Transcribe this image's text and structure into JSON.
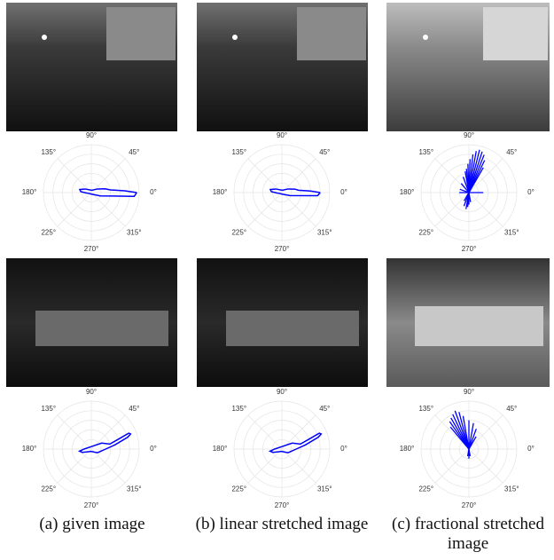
{
  "chart_data": [
    {
      "type": "line",
      "color": "#0000ff",
      "rlim": [
        0,
        1
      ],
      "thetaticks": [
        {
          "value": 90,
          "label": "90°"
        },
        {
          "value": 45,
          "label": "45°"
        },
        {
          "value": 0,
          "label": "0°"
        },
        {
          "value": 315,
          "label": "315°"
        },
        {
          "value": 270,
          "label": "270°"
        },
        {
          "value": 225,
          "label": "225°"
        },
        {
          "value": 180,
          "label": "180°"
        },
        {
          "value": 135,
          "label": "135°"
        }
      ],
      "theta": [
        0,
        3,
        8,
        15,
        30,
        80,
        150,
        165,
        175,
        185,
        200,
        260,
        340,
        355,
        0
      ],
      "r": [
        0.95,
        0.7,
        0.4,
        0.3,
        0.15,
        0.05,
        0.15,
        0.25,
        0.22,
        0.1,
        0.05,
        0.03,
        0.2,
        0.9,
        0.95
      ]
    },
    {
      "type": "line",
      "color": "#0000ff",
      "rlim": [
        0,
        1
      ],
      "thetaticks": [
        {
          "value": 90,
          "label": "90°"
        },
        {
          "value": 45,
          "label": "45°"
        },
        {
          "value": 0,
          "label": "0°"
        },
        {
          "value": 315,
          "label": "315°"
        },
        {
          "value": 270,
          "label": "270°"
        },
        {
          "value": 225,
          "label": "225°"
        },
        {
          "value": 180,
          "label": "180°"
        },
        {
          "value": 135,
          "label": "135°"
        }
      ],
      "theta": [
        0,
        3,
        8,
        15,
        30,
        80,
        150,
        165,
        175,
        185,
        200,
        260,
        340,
        355,
        0
      ],
      "r": [
        0.8,
        0.6,
        0.35,
        0.28,
        0.15,
        0.05,
        0.15,
        0.25,
        0.22,
        0.1,
        0.05,
        0.03,
        0.18,
        0.75,
        0.8
      ]
    },
    {
      "type": "spikes",
      "color": "#0000ff",
      "rlim": [
        0,
        1
      ],
      "thetaticks": [
        {
          "value": 90,
          "label": "90°"
        },
        {
          "value": 45,
          "label": "45°"
        },
        {
          "value": 0,
          "label": "0°"
        },
        {
          "value": 315,
          "label": "315°"
        },
        {
          "value": 270,
          "label": "270°"
        },
        {
          "value": 225,
          "label": "225°"
        },
        {
          "value": 180,
          "label": "180°"
        },
        {
          "value": 135,
          "label": "135°"
        }
      ],
      "theta": [
        0,
        60,
        64,
        68,
        72,
        76,
        80,
        84,
        88,
        92,
        96,
        100,
        110,
        130,
        160,
        180,
        240,
        250,
        260,
        265,
        270,
        280
      ],
      "r": [
        0.3,
        0.6,
        0.75,
        0.85,
        0.9,
        0.92,
        0.88,
        0.8,
        0.7,
        0.6,
        0.5,
        0.45,
        0.35,
        0.25,
        0.2,
        0.2,
        0.2,
        0.3,
        0.35,
        0.3,
        0.25,
        0.2
      ]
    },
    {
      "type": "line",
      "color": "#0000ff",
      "rlim": [
        0,
        1
      ],
      "thetaticks": [
        {
          "value": 90,
          "label": "90°"
        },
        {
          "value": 45,
          "label": "45°"
        },
        {
          "value": 0,
          "label": "0°"
        },
        {
          "value": 315,
          "label": "315°"
        },
        {
          "value": 270,
          "label": "270°"
        },
        {
          "value": 225,
          "label": "225°"
        },
        {
          "value": 180,
          "label": "180°"
        },
        {
          "value": 135,
          "label": "135°"
        }
      ],
      "theta": [
        0,
        10,
        18,
        21,
        23,
        20,
        15,
        30,
        120,
        180,
        190,
        200,
        215,
        260,
        330,
        0
      ],
      "r": [
        0.3,
        0.5,
        0.8,
        0.88,
        0.85,
        0.6,
        0.4,
        0.25,
        0.05,
        0.15,
        0.25,
        0.2,
        0.1,
        0.05,
        0.15,
        0.3
      ]
    },
    {
      "type": "line",
      "color": "#0000ff",
      "rlim": [
        0,
        1
      ],
      "thetaticks": [
        {
          "value": 90,
          "label": "90°"
        },
        {
          "value": 45,
          "label": "45°"
        },
        {
          "value": 0,
          "label": "0°"
        },
        {
          "value": 315,
          "label": "315°"
        },
        {
          "value": 270,
          "label": "270°"
        },
        {
          "value": 225,
          "label": "225°"
        },
        {
          "value": 180,
          "label": "180°"
        },
        {
          "value": 135,
          "label": "135°"
        }
      ],
      "theta": [
        0,
        10,
        18,
        21,
        23,
        20,
        15,
        30,
        120,
        180,
        190,
        200,
        215,
        260,
        330,
        0
      ],
      "r": [
        0.3,
        0.5,
        0.8,
        0.88,
        0.85,
        0.6,
        0.4,
        0.25,
        0.05,
        0.15,
        0.25,
        0.2,
        0.1,
        0.05,
        0.15,
        0.3
      ]
    },
    {
      "type": "spikes",
      "color": "#0000ff",
      "rlim": [
        0,
        1
      ],
      "thetaticks": [
        {
          "value": 90,
          "label": "90°"
        },
        {
          "value": 45,
          "label": "45°"
        },
        {
          "value": 0,
          "label": "0°"
        },
        {
          "value": 315,
          "label": "315°"
        },
        {
          "value": 270,
          "label": "270°"
        },
        {
          "value": 225,
          "label": "225°"
        },
        {
          "value": 180,
          "label": "180°"
        },
        {
          "value": 135,
          "label": "135°"
        }
      ],
      "theta": [
        60,
        70,
        80,
        90,
        100,
        105,
        110,
        115,
        120,
        125,
        130,
        260,
        270,
        280
      ],
      "r": [
        0.3,
        0.45,
        0.55,
        0.6,
        0.7,
        0.8,
        0.85,
        0.8,
        0.75,
        0.7,
        0.6,
        0.15,
        0.2,
        0.15
      ]
    }
  ],
  "captions": [
    "(a) given image",
    "(b) linear stretched image",
    "(c) fractional stretched image"
  ]
}
